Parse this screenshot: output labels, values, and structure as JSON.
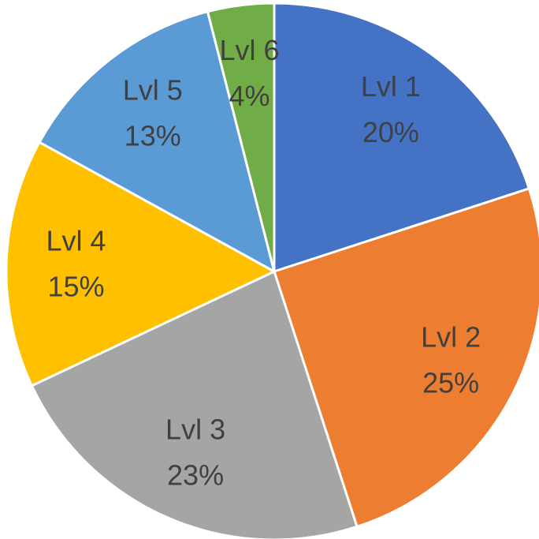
{
  "chart_data": {
    "type": "pie",
    "categories": [
      "Lvl 1",
      "Lvl 2",
      "Lvl 3",
      "Lvl 4",
      "Lvl 5",
      "Lvl 6"
    ],
    "values": [
      20,
      25,
      23,
      15,
      13,
      4
    ],
    "value_labels": [
      "20%",
      "25%",
      "23%",
      "15%",
      "13%",
      "4%"
    ],
    "colors": [
      "#4472c4",
      "#ed7d31",
      "#a5a5a5",
      "#ffc000",
      "#5b9bd5",
      "#70ad47"
    ]
  }
}
